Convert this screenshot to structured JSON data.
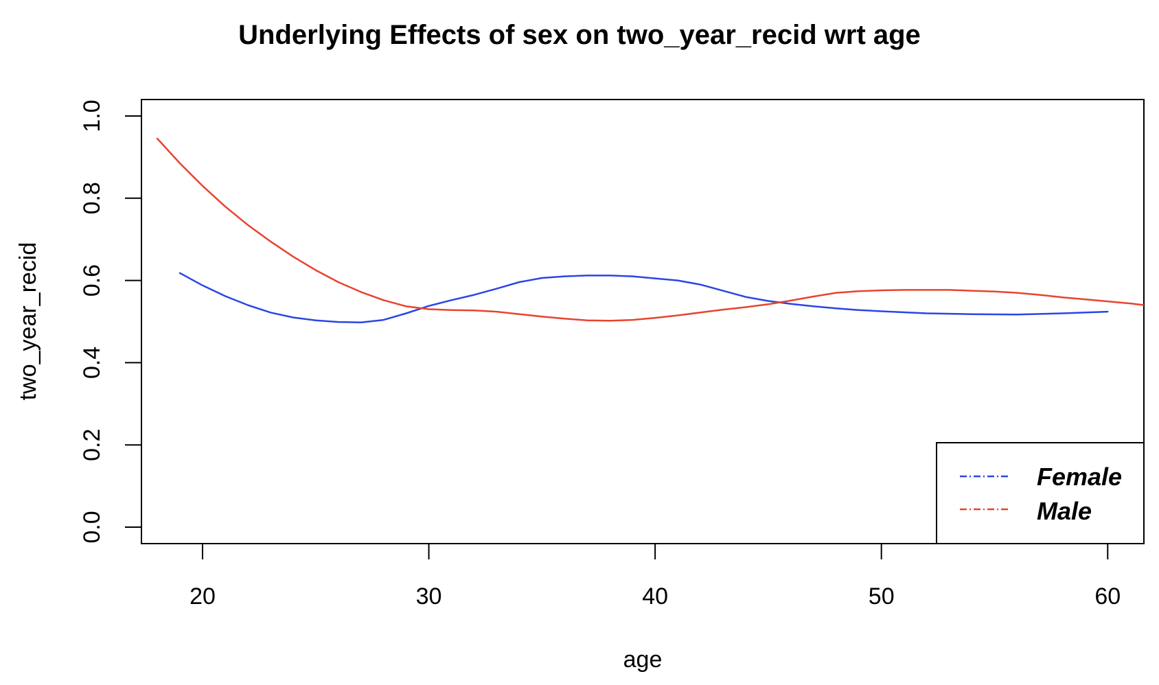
{
  "chart_data": {
    "type": "line",
    "title": "Underlying Effects of  sex  on  two_year_recid  wrt  age",
    "xlabel": "age",
    "ylabel": "two_year_recid",
    "xlim": [
      17.3,
      61.6
    ],
    "ylim": [
      -0.04,
      1.04
    ],
    "x_ticks": [
      20,
      30,
      40,
      50,
      60
    ],
    "x_tick_labels": [
      "20",
      "30",
      "40",
      "50",
      "60"
    ],
    "y_ticks": [
      0.0,
      0.2,
      0.4,
      0.6,
      0.8,
      1.0
    ],
    "y_tick_labels": [
      "0.0",
      "0.2",
      "0.4",
      "0.6",
      "0.8",
      "1.0"
    ],
    "grid": false,
    "legend_position": "bottom-right",
    "series": [
      {
        "name": "Female",
        "color": "#2b45e6",
        "points": [
          [
            19,
            0.618
          ],
          [
            20,
            0.588
          ],
          [
            21,
            0.562
          ],
          [
            22,
            0.54
          ],
          [
            23,
            0.522
          ],
          [
            24,
            0.51
          ],
          [
            25,
            0.503
          ],
          [
            26,
            0.499
          ],
          [
            27,
            0.498
          ],
          [
            28,
            0.504
          ],
          [
            29,
            0.52
          ],
          [
            30,
            0.538
          ],
          [
            31,
            0.552
          ],
          [
            32,
            0.565
          ],
          [
            33,
            0.58
          ],
          [
            34,
            0.596
          ],
          [
            35,
            0.606
          ],
          [
            36,
            0.61
          ],
          [
            37,
            0.612
          ],
          [
            38,
            0.612
          ],
          [
            39,
            0.61
          ],
          [
            40,
            0.605
          ],
          [
            41,
            0.6
          ],
          [
            42,
            0.59
          ],
          [
            43,
            0.575
          ],
          [
            44,
            0.56
          ],
          [
            45,
            0.55
          ],
          [
            46,
            0.543
          ],
          [
            47,
            0.537
          ],
          [
            48,
            0.532
          ],
          [
            49,
            0.528
          ],
          [
            50,
            0.525
          ],
          [
            52,
            0.52
          ],
          [
            54,
            0.518
          ],
          [
            56,
            0.517
          ],
          [
            58,
            0.52
          ],
          [
            60,
            0.524
          ]
        ]
      },
      {
        "name": "Male",
        "color": "#e8432f",
        "points": [
          [
            18,
            0.945
          ],
          [
            19,
            0.885
          ],
          [
            20,
            0.83
          ],
          [
            21,
            0.78
          ],
          [
            22,
            0.735
          ],
          [
            23,
            0.695
          ],
          [
            24,
            0.658
          ],
          [
            25,
            0.625
          ],
          [
            26,
            0.596
          ],
          [
            27,
            0.572
          ],
          [
            28,
            0.552
          ],
          [
            29,
            0.537
          ],
          [
            30,
            0.53
          ],
          [
            31,
            0.528
          ],
          [
            32,
            0.527
          ],
          [
            33,
            0.524
          ],
          [
            34,
            0.518
          ],
          [
            35,
            0.512
          ],
          [
            36,
            0.507
          ],
          [
            37,
            0.503
          ],
          [
            38,
            0.502
          ],
          [
            39,
            0.504
          ],
          [
            40,
            0.509
          ],
          [
            41,
            0.515
          ],
          [
            42,
            0.522
          ],
          [
            43,
            0.529
          ],
          [
            44,
            0.535
          ],
          [
            45,
            0.542
          ],
          [
            46,
            0.551
          ],
          [
            47,
            0.561
          ],
          [
            48,
            0.57
          ],
          [
            49,
            0.574
          ],
          [
            50,
            0.576
          ],
          [
            51,
            0.577
          ],
          [
            52,
            0.577
          ],
          [
            53,
            0.577
          ],
          [
            54,
            0.575
          ],
          [
            55,
            0.573
          ],
          [
            56,
            0.57
          ],
          [
            57,
            0.565
          ],
          [
            58,
            0.559
          ],
          [
            59,
            0.554
          ],
          [
            60,
            0.549
          ],
          [
            61,
            0.544
          ],
          [
            61.6,
            0.54
          ]
        ]
      }
    ]
  }
}
